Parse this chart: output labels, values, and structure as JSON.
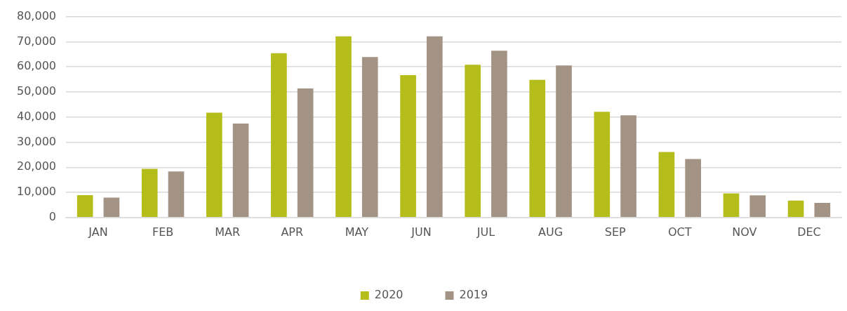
{
  "chart_data": {
    "type": "bar",
    "categories": [
      "JAN",
      "FEB",
      "MAR",
      "APR",
      "MAY",
      "JUN",
      "JUL",
      "AUG",
      "SEP",
      "OCT",
      "NOV",
      "DEC"
    ],
    "series": [
      {
        "name": "2020",
        "color": "#b5bd1a",
        "values": [
          8900,
          19400,
          41700,
          65400,
          72100,
          56700,
          60800,
          54800,
          42100,
          26100,
          9600,
          6700
        ]
      },
      {
        "name": "2019",
        "color": "#a39384",
        "values": [
          7900,
          18300,
          37400,
          51400,
          63900,
          72100,
          66400,
          60500,
          40700,
          23300,
          8800,
          5800
        ]
      }
    ],
    "ylim": [
      0,
      80000
    ],
    "yticks": [
      0,
      {
        "value": 10000,
        "label": "10,000"
      },
      {
        "value": 20000,
        "label": "20,000"
      },
      {
        "value": 30000,
        "label": "30,000"
      },
      {
        "value": 40000,
        "label": "40,000"
      },
      {
        "value": 50000,
        "label": "50,000"
      },
      {
        "value": 60000,
        "label": "60,000"
      },
      {
        "value": 70000,
        "label": "70,000"
      },
      {
        "value": 80000,
        "label": "80,000"
      }
    ],
    "grid": "y",
    "legend": "bottom"
  }
}
